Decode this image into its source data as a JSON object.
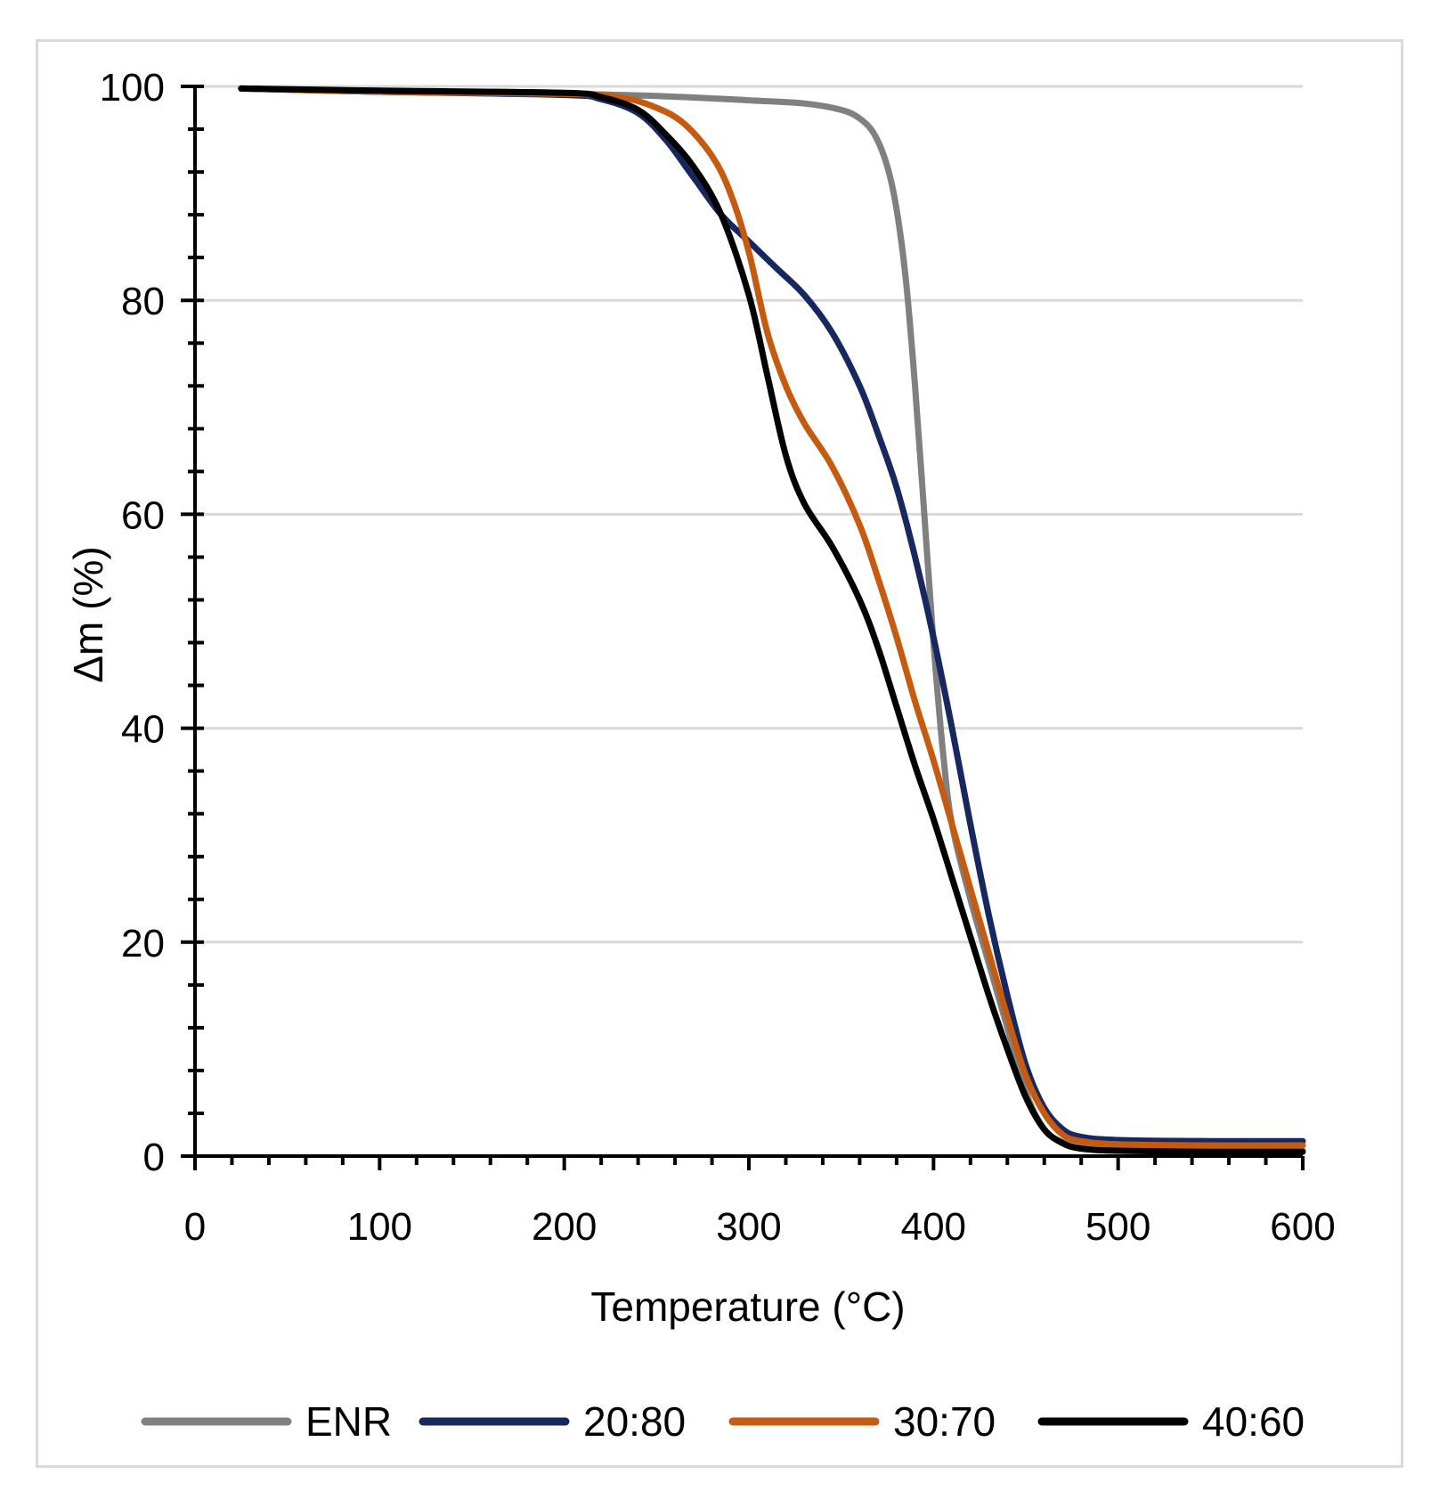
{
  "chart_data": {
    "type": "line",
    "title": "",
    "xlabel": "Temperature (°C)",
    "ylabel": "Δm (%)",
    "xlim": [
      0,
      600
    ],
    "ylim": [
      0,
      100
    ],
    "xticks": [
      0,
      100,
      200,
      300,
      400,
      500,
      600
    ],
    "yticks": [
      0,
      20,
      40,
      60,
      80,
      100
    ],
    "grid": "horizontal",
    "legend": "bottom",
    "series": [
      {
        "name": "ENR",
        "color": "#808080",
        "points": [
          [
            25,
            99.8
          ],
          [
            100,
            99.5
          ],
          [
            200,
            99.3
          ],
          [
            250,
            99.1
          ],
          [
            300,
            98.7
          ],
          [
            330,
            98.4
          ],
          [
            350,
            97.8
          ],
          [
            360,
            97.0
          ],
          [
            368,
            95.5
          ],
          [
            375,
            92.5
          ],
          [
            380,
            88.5
          ],
          [
            385,
            82.0
          ],
          [
            390,
            72.0
          ],
          [
            395,
            60.0
          ],
          [
            400,
            48.0
          ],
          [
            405,
            38.0
          ],
          [
            410,
            31.0
          ],
          [
            420,
            24.0
          ],
          [
            430,
            18.0
          ],
          [
            440,
            12.0
          ],
          [
            450,
            6.0
          ],
          [
            460,
            2.5
          ],
          [
            470,
            1.3
          ],
          [
            480,
            0.9
          ],
          [
            500,
            0.6
          ],
          [
            550,
            0.5
          ],
          [
            600,
            0.5
          ]
        ]
      },
      {
        "name": "20:80",
        "color": "#17275f",
        "points": [
          [
            25,
            99.8
          ],
          [
            100,
            99.5
          ],
          [
            200,
            99.2
          ],
          [
            220,
            98.8
          ],
          [
            240,
            97.5
          ],
          [
            255,
            95.0
          ],
          [
            270,
            91.5
          ],
          [
            285,
            88.0
          ],
          [
            300,
            85.5
          ],
          [
            315,
            83.0
          ],
          [
            330,
            80.5
          ],
          [
            345,
            77.0
          ],
          [
            360,
            72.0
          ],
          [
            370,
            67.5
          ],
          [
            380,
            62.5
          ],
          [
            390,
            56.0
          ],
          [
            400,
            48.5
          ],
          [
            410,
            40.0
          ],
          [
            420,
            31.0
          ],
          [
            430,
            22.5
          ],
          [
            440,
            15.0
          ],
          [
            450,
            8.5
          ],
          [
            460,
            4.5
          ],
          [
            470,
            2.5
          ],
          [
            480,
            1.8
          ],
          [
            500,
            1.5
          ],
          [
            550,
            1.4
          ],
          [
            600,
            1.4
          ]
        ]
      },
      {
        "name": "30:70",
        "color": "#c55a11",
        "points": [
          [
            25,
            99.8
          ],
          [
            100,
            99.5
          ],
          [
            200,
            99.3
          ],
          [
            230,
            99.0
          ],
          [
            250,
            98.0
          ],
          [
            265,
            96.5
          ],
          [
            280,
            93.5
          ],
          [
            290,
            90.0
          ],
          [
            300,
            84.5
          ],
          [
            310,
            77.0
          ],
          [
            320,
            72.0
          ],
          [
            330,
            68.5
          ],
          [
            345,
            64.5
          ],
          [
            360,
            59.0
          ],
          [
            370,
            54.0
          ],
          [
            380,
            48.5
          ],
          [
            390,
            42.5
          ],
          [
            400,
            37.0
          ],
          [
            410,
            31.0
          ],
          [
            420,
            25.0
          ],
          [
            430,
            19.0
          ],
          [
            440,
            13.0
          ],
          [
            450,
            7.5
          ],
          [
            460,
            4.0
          ],
          [
            470,
            2.0
          ],
          [
            480,
            1.4
          ],
          [
            500,
            1.1
          ],
          [
            550,
            1.0
          ],
          [
            600,
            1.0
          ]
        ]
      },
      {
        "name": "40:60",
        "color": "#000000",
        "points": [
          [
            25,
            99.8
          ],
          [
            100,
            99.6
          ],
          [
            200,
            99.4
          ],
          [
            220,
            99.0
          ],
          [
            240,
            97.8
          ],
          [
            255,
            95.5
          ],
          [
            270,
            92.5
          ],
          [
            285,
            88.0
          ],
          [
            300,
            80.5
          ],
          [
            310,
            73.0
          ],
          [
            320,
            65.5
          ],
          [
            330,
            61.0
          ],
          [
            345,
            57.0
          ],
          [
            360,
            52.0
          ],
          [
            370,
            47.5
          ],
          [
            380,
            42.0
          ],
          [
            390,
            36.5
          ],
          [
            400,
            31.5
          ],
          [
            410,
            26.0
          ],
          [
            420,
            20.5
          ],
          [
            430,
            15.0
          ],
          [
            440,
            10.0
          ],
          [
            450,
            5.5
          ],
          [
            460,
            2.5
          ],
          [
            470,
            1.2
          ],
          [
            480,
            0.7
          ],
          [
            500,
            0.5
          ],
          [
            550,
            0.4
          ],
          [
            600,
            0.4
          ]
        ]
      }
    ]
  }
}
